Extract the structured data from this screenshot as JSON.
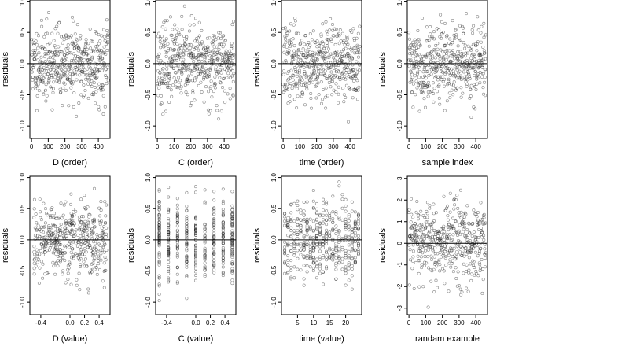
{
  "figure": {
    "rows": 2,
    "cols": 4
  },
  "chart_data": [
    {
      "type": "scatter",
      "xlabel": "D (order)",
      "ylabel": "residuals",
      "xlim": [
        -10,
        470
      ],
      "ylim": [
        -1.2,
        1.02
      ],
      "x_ticks": [
        0,
        100,
        200,
        300,
        400
      ],
      "x_tick_labels": [
        "0",
        "100",
        "200",
        "300",
        "400"
      ],
      "y_ticks": [
        -1.0,
        -0.5,
        0.0,
        0.5,
        1.0
      ],
      "y_tick_labels": [
        "-1.0",
        "-0.5",
        "0.0",
        "0.5",
        "1.0"
      ],
      "reference_line_y": 0,
      "grid": false,
      "x_mode": "index",
      "point_seed": 11,
      "points_n": 460,
      "residual_sd": 0.3
    },
    {
      "type": "scatter",
      "xlabel": "C (order)",
      "ylabel": "residuals",
      "xlim": [
        -10,
        470
      ],
      "ylim": [
        -1.2,
        1.02
      ],
      "x_ticks": [
        0,
        100,
        200,
        300,
        400
      ],
      "x_tick_labels": [
        "0",
        "100",
        "200",
        "300",
        "400"
      ],
      "y_ticks": [
        -1.0,
        -0.5,
        0.0,
        0.5,
        1.0
      ],
      "y_tick_labels": [
        "-1.0",
        "-0.5",
        "0.0",
        "0.5",
        "1.0"
      ],
      "reference_line_y": 0,
      "grid": false,
      "x_mode": "index",
      "point_seed": 23,
      "points_n": 460,
      "residual_sd": 0.3
    },
    {
      "type": "scatter",
      "xlabel": "time (order)",
      "ylabel": "residuals",
      "xlim": [
        -10,
        470
      ],
      "ylim": [
        -1.2,
        1.02
      ],
      "x_ticks": [
        0,
        100,
        200,
        300,
        400
      ],
      "x_tick_labels": [
        "0",
        "100",
        "200",
        "300",
        "400"
      ],
      "y_ticks": [
        -1.0,
        -0.5,
        0.0,
        0.5,
        1.0
      ],
      "y_tick_labels": [
        "-1.0",
        "-0.5",
        "0.0",
        "0.5",
        "1.0"
      ],
      "reference_line_y": 0,
      "grid": false,
      "x_mode": "index",
      "point_seed": 37,
      "points_n": 460,
      "residual_sd": 0.3
    },
    {
      "type": "scatter",
      "xlabel": "sample index",
      "ylabel": "residuals",
      "xlim": [
        -10,
        470
      ],
      "ylim": [
        -1.2,
        1.02
      ],
      "x_ticks": [
        0,
        100,
        200,
        300,
        400
      ],
      "x_tick_labels": [
        "0",
        "100",
        "200",
        "300",
        "400"
      ],
      "y_ticks": [
        -1.0,
        -0.5,
        0.0,
        0.5,
        1.0
      ],
      "y_tick_labels": [
        "-1.0",
        "-0.5",
        "0.0",
        "0.5",
        "1.0"
      ],
      "reference_line_y": 0,
      "grid": false,
      "x_mode": "index",
      "point_seed": 41,
      "points_n": 460,
      "residual_sd": 0.3
    },
    {
      "type": "scatter",
      "xlabel": "D (value)",
      "ylabel": "residuals",
      "xlim": [
        -0.55,
        0.55
      ],
      "ylim": [
        -1.2,
        1.02
      ],
      "x_ticks": [
        -0.4,
        0.0,
        0.2,
        0.4
      ],
      "x_tick_labels": [
        "-0.4",
        "0.0",
        "0.2",
        "0.4"
      ],
      "y_ticks": [
        -1.0,
        -0.5,
        0.0,
        0.5,
        1.0
      ],
      "y_tick_labels": [
        "-1.0",
        "-0.5",
        "0.0",
        "0.5",
        "1.0"
      ],
      "reference_line_y": 0,
      "grid": false,
      "x_mode": "continuous",
      "x_range": [
        -0.5,
        0.5
      ],
      "point_seed": 53,
      "points_n": 460,
      "residual_sd": 0.3
    },
    {
      "type": "scatter",
      "xlabel": "C (value)",
      "ylabel": "residuals",
      "xlim": [
        -0.55,
        0.55
      ],
      "ylim": [
        -1.2,
        1.02
      ],
      "x_ticks": [
        -0.4,
        0.0,
        0.2,
        0.4
      ],
      "x_tick_labels": [
        "-0.4",
        "0.0",
        "0.2",
        "0.4"
      ],
      "y_ticks": [
        -1.0,
        -0.5,
        0.0,
        0.5,
        1.0
      ],
      "y_tick_labels": [
        "-1.0",
        "-0.5",
        "0.0",
        "0.5",
        "1.0"
      ],
      "reference_line_y": 0,
      "grid": false,
      "x_mode": "discrete",
      "x_levels": [
        -0.5,
        -0.375,
        -0.25,
        -0.125,
        0.0,
        0.125,
        0.25,
        0.375,
        0.5
      ],
      "point_seed": 67,
      "points_n": 460,
      "residual_sd": 0.3
    },
    {
      "type": "scatter",
      "xlabel": "time (value)",
      "ylabel": "residuals",
      "xlim": [
        0,
        25
      ],
      "ylim": [
        -1.2,
        1.02
      ],
      "x_ticks": [
        5,
        10,
        15,
        20
      ],
      "x_tick_labels": [
        "5",
        "10",
        "15",
        "20"
      ],
      "y_ticks": [
        -1.0,
        -0.5,
        0.0,
        0.5,
        1.0
      ],
      "y_tick_labels": [
        "-1.0",
        "-0.5",
        "0.0",
        "0.5",
        "1.0"
      ],
      "reference_line_y": 0,
      "grid": false,
      "x_mode": "discrete",
      "x_levels": [
        1,
        2,
        3,
        4,
        5,
        6,
        7,
        8,
        9,
        10,
        11,
        12,
        13,
        14,
        15,
        16,
        17,
        18,
        19,
        20,
        21,
        22,
        23,
        24
      ],
      "point_seed": 79,
      "points_n": 460,
      "residual_sd": 0.3
    },
    {
      "type": "scatter",
      "xlabel": "randam example",
      "ylabel": "residuals",
      "xlim": [
        -10,
        470
      ],
      "ylim": [
        -3.3,
        3.1
      ],
      "x_ticks": [
        0,
        100,
        200,
        300,
        400
      ],
      "x_tick_labels": [
        "0",
        "100",
        "200",
        "300",
        "400"
      ],
      "y_ticks": [
        -3,
        -2,
        -1,
        0,
        1,
        2,
        3
      ],
      "y_tick_labels": [
        "-3",
        "-2",
        "-1",
        "0",
        "1",
        "2",
        "3"
      ],
      "reference_line_y": 0,
      "grid": false,
      "x_mode": "index",
      "point_seed": 97,
      "points_n": 460,
      "residual_sd": 1.0
    }
  ]
}
